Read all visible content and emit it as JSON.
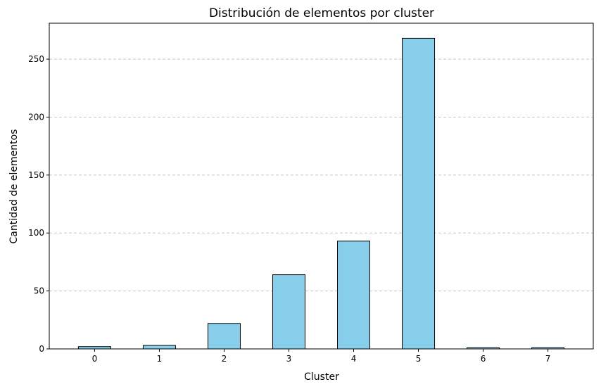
{
  "chart_data": {
    "type": "bar",
    "title": "Distribución de elementos por cluster",
    "xlabel": "Cluster",
    "ylabel": "Cantidad de elementos",
    "categories": [
      "0",
      "1",
      "2",
      "3",
      "4",
      "5",
      "6",
      "7"
    ],
    "values": [
      2,
      3,
      22,
      64,
      93,
      268,
      1,
      1
    ],
    "ylim": [
      0,
      281
    ],
    "yticks": [
      0,
      50,
      100,
      150,
      200,
      250
    ],
    "grid": "y-dashed",
    "legend": "none",
    "colors": {
      "bar_fill": "#87ceeb",
      "bar_edge": "#000000",
      "grid": "#c8c8c8"
    }
  }
}
